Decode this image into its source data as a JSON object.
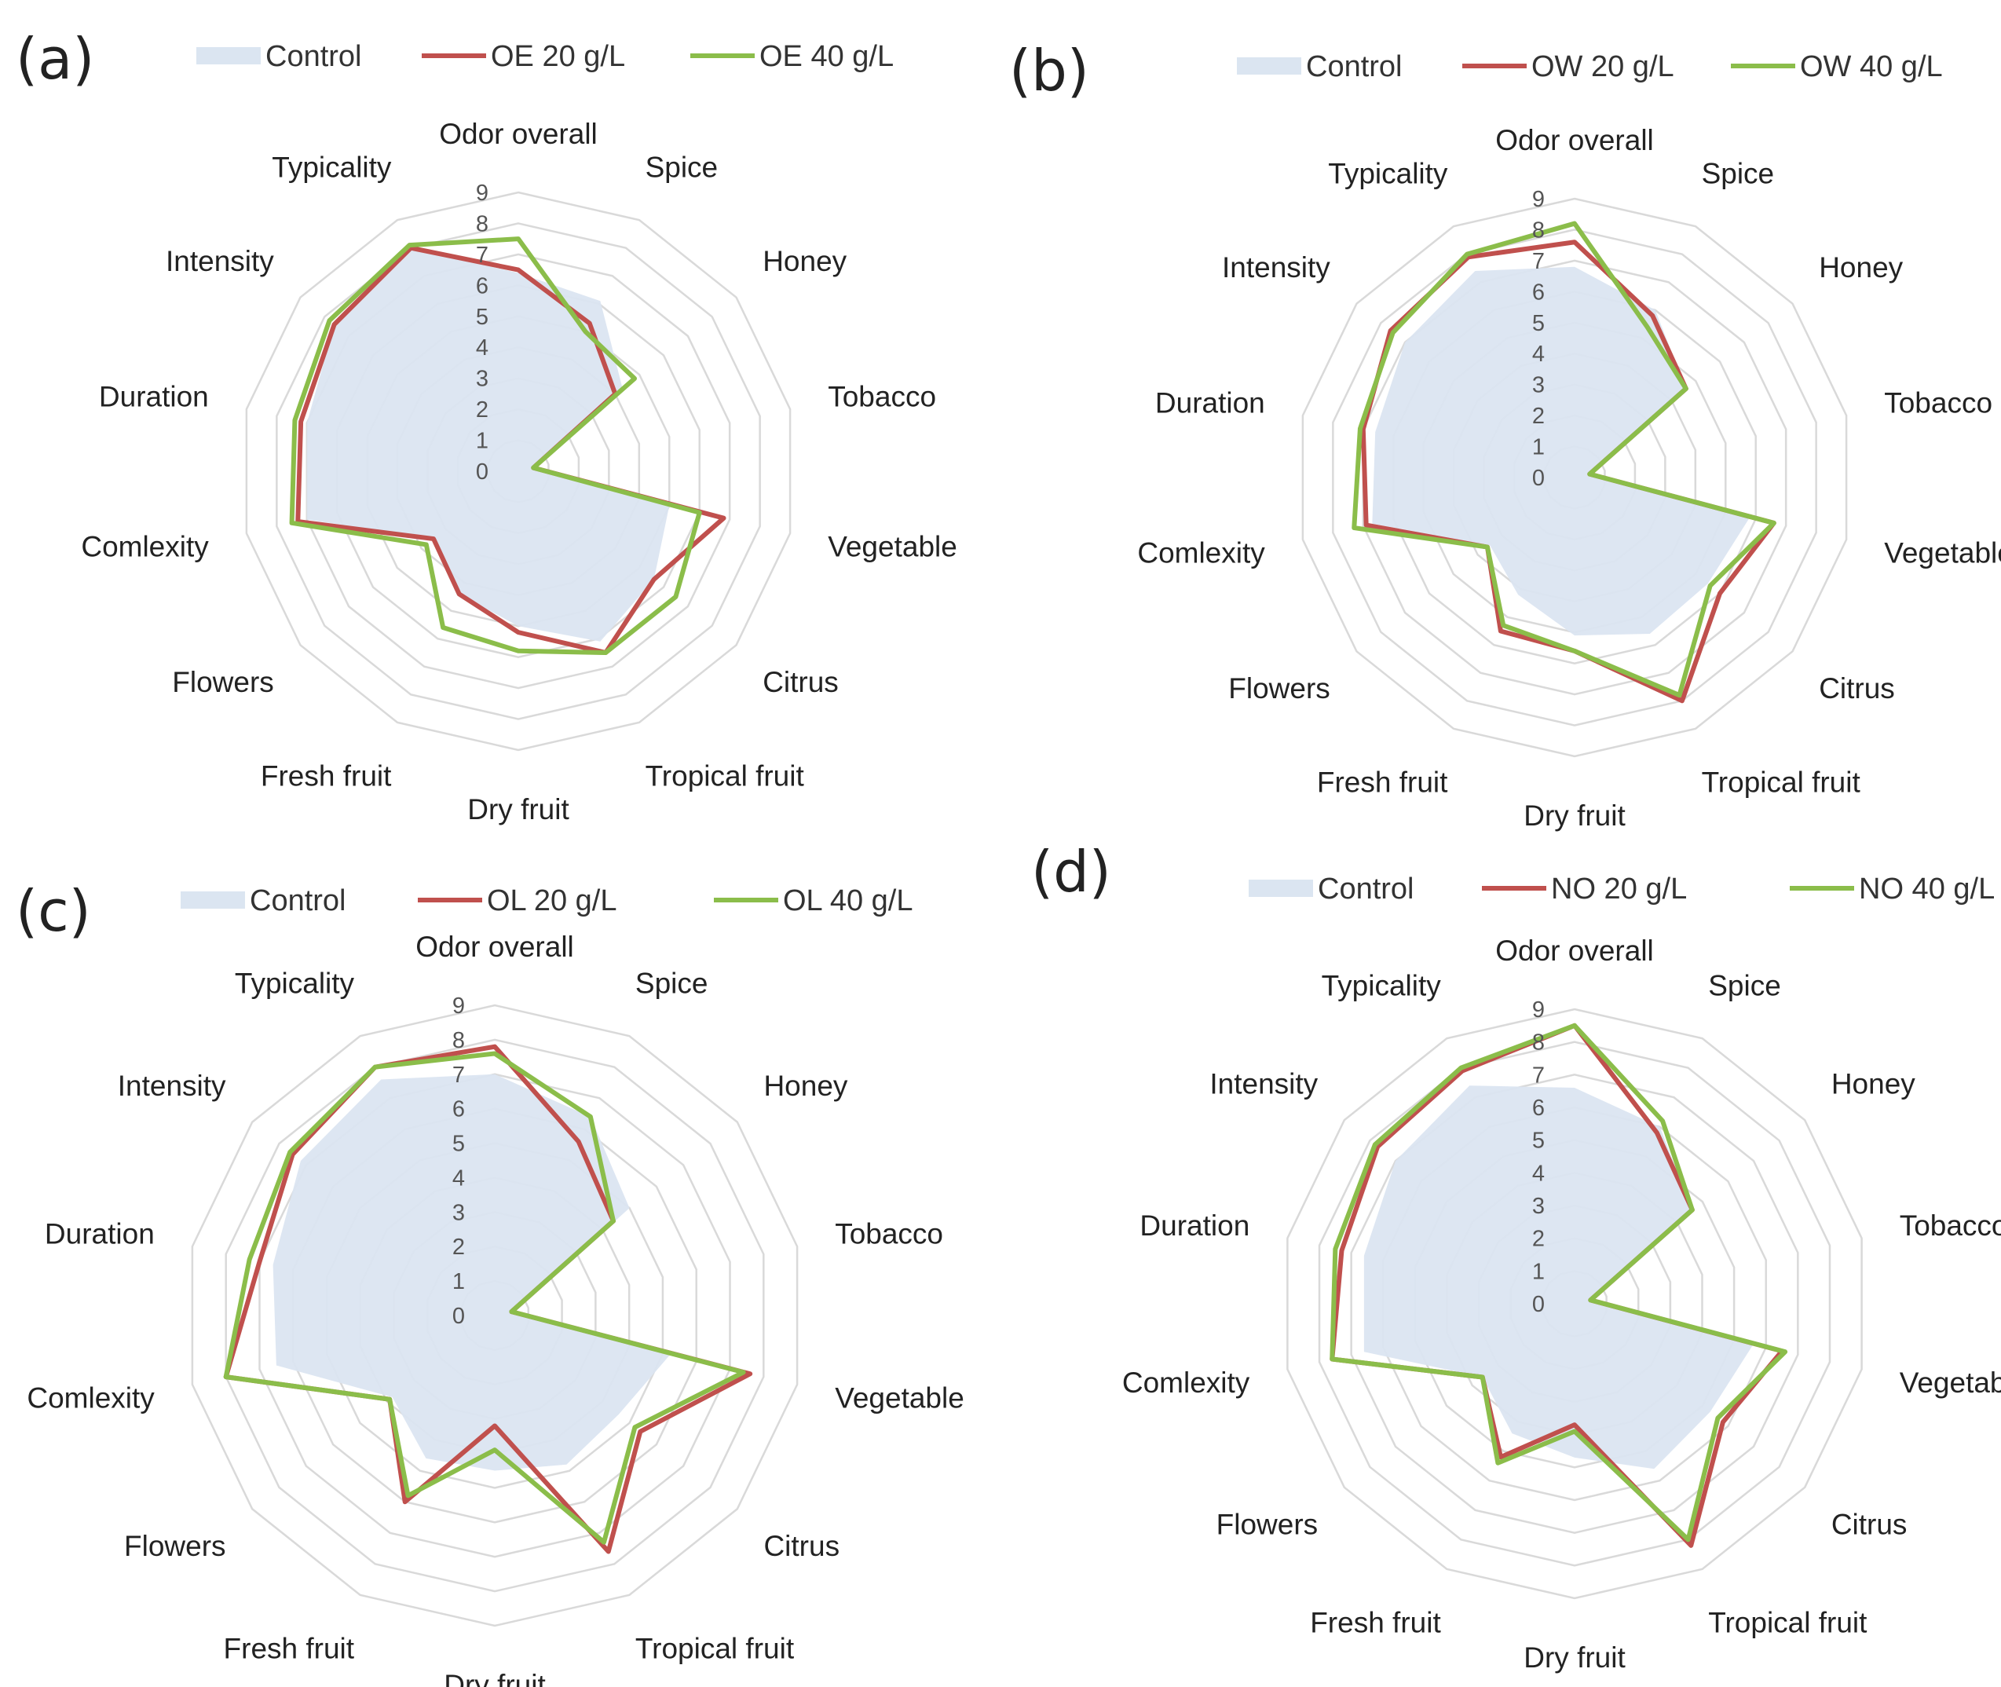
{
  "figure": {
    "colors": {
      "control": "#dbe5f1",
      "red": "#c0504d",
      "green": "#8bbd4a",
      "grid": "#d9d9d9"
    }
  },
  "chart_data": [
    {
      "type": "radar",
      "panel_label": "(a)",
      "categories": [
        "Odor overall",
        "Spice",
        "Honey",
        "Tobacco",
        "Vegetable",
        "Citrus",
        "Tropical fruit",
        "Dry fruit",
        "Fresh fruit",
        "Flowers",
        "Comlexity",
        "Duration",
        "Intensity",
        "Typicality"
      ],
      "ticks": [
        "0",
        "1",
        "2",
        "3",
        "4",
        "5",
        "6",
        "7",
        "8",
        "9"
      ],
      "rmax": 9,
      "series": [
        {
          "name": "Control",
          "style": "area",
          "color": "#dbe5f1",
          "values": [
            6.4,
            6.1,
            4.3,
            0.6,
            5.0,
            5.6,
            6.1,
            5.0,
            4.4,
            3.5,
            7.0,
            7.0,
            7.6,
            8.0
          ]
        },
        {
          "name": "OE 20 g/L",
          "style": "line",
          "color": "#c0504d",
          "values": [
            6.5,
            5.3,
            4.0,
            0.5,
            6.8,
            5.6,
            6.5,
            5.2,
            4.4,
            3.5,
            7.3,
            7.2,
            7.6,
            8.0
          ]
        },
        {
          "name": "OE 40 g/L",
          "style": "line",
          "color": "#8bbd4a",
          "values": [
            7.5,
            5.0,
            4.8,
            0.5,
            6.0,
            6.5,
            6.5,
            5.8,
            5.6,
            3.8,
            7.5,
            7.4,
            7.8,
            8.1
          ]
        }
      ]
    },
    {
      "type": "radar",
      "panel_label": "(b)",
      "categories": [
        "Odor overall",
        "Spice",
        "Honey",
        "Tobacco",
        "Vegetable",
        "Citrus",
        "Tropical fruit",
        "Dry fruit",
        "Fresh fruit",
        "Flowers",
        "Comlexity",
        "Duration",
        "Intensity",
        "Typicality"
      ],
      "ticks": [
        "0",
        "1",
        "2",
        "3",
        "4",
        "5",
        "6",
        "7",
        "8",
        "9"
      ],
      "rmax": 9,
      "series": [
        {
          "name": "Control",
          "style": "area",
          "color": "#dbe5f1",
          "values": [
            6.8,
            6.0,
            4.6,
            0.6,
            5.8,
            5.5,
            5.6,
            5.1,
            4.2,
            3.5,
            6.7,
            6.6,
            7.0,
            7.4
          ]
        },
        {
          "name": "OW 20 g/L",
          "style": "line",
          "color": "#c0504d",
          "values": [
            7.6,
            5.8,
            4.6,
            0.5,
            6.6,
            6.0,
            8.0,
            5.6,
            5.5,
            3.6,
            6.9,
            7.0,
            7.6,
            7.9
          ]
        },
        {
          "name": "OW 40 g/L",
          "style": "line",
          "color": "#8bbd4a",
          "values": [
            8.2,
            5.4,
            4.6,
            0.5,
            6.6,
            5.6,
            7.8,
            5.6,
            5.3,
            3.6,
            7.3,
            7.1,
            7.5,
            8.0
          ]
        }
      ]
    },
    {
      "type": "radar",
      "panel_label": "(c)",
      "categories": [
        "Odor overall",
        "Spice",
        "Honey",
        "Tobacco",
        "Vegetable",
        "Citrus",
        "Tropical fruit",
        "Dry fruit",
        "Fresh fruit",
        "Flowers",
        "Comlexity",
        "Duration",
        "Intensity",
        "Typicality"
      ],
      "ticks": [
        "0",
        "1",
        "2",
        "3",
        "4",
        "5",
        "6",
        "7",
        "8",
        "9"
      ],
      "rmax": 9,
      "series": [
        {
          "name": "Control",
          "style": "area",
          "color": "#dbe5f1",
          "values": [
            7.0,
            6.4,
            5.0,
            0.6,
            5.2,
            4.6,
            4.8,
            4.5,
            4.6,
            3.8,
            6.5,
            6.6,
            7.2,
            7.6
          ]
        },
        {
          "name": "OL 20 g/L",
          "style": "line",
          "color": "#c0504d",
          "values": [
            7.8,
            5.6,
            4.4,
            0.5,
            7.6,
            5.4,
            7.6,
            3.2,
            6.0,
            3.9,
            8.0,
            7.0,
            7.5,
            8.0
          ]
        },
        {
          "name": "OL 40 g/L",
          "style": "line",
          "color": "#8bbd4a",
          "values": [
            7.6,
            6.4,
            4.4,
            0.5,
            7.4,
            5.2,
            7.3,
            3.9,
            5.8,
            3.9,
            8.0,
            7.3,
            7.6,
            8.0
          ]
        }
      ]
    },
    {
      "type": "radar",
      "panel_label": "(d)",
      "categories": [
        "Odor overall",
        "Spice",
        "Honey",
        "Tobacco",
        "Vegetable",
        "Citrus",
        "Tropical fruit",
        "Dry fruit",
        "Fresh fruit",
        "Flowers",
        "Comlexity",
        "Duration",
        "Intensity",
        "Typicality"
      ],
      "ticks": [
        "0",
        "1",
        "2",
        "3",
        "4",
        "5",
        "6",
        "7",
        "8",
        "9"
      ],
      "rmax": 9,
      "series": [
        {
          "name": "Control",
          "style": "area",
          "color": "#dbe5f1",
          "values": [
            6.6,
            6.0,
            4.6,
            0.6,
            5.6,
            5.3,
            5.6,
            4.7,
            4.4,
            3.6,
            6.6,
            6.6,
            7.0,
            7.4
          ]
        },
        {
          "name": "NO 20 g/L",
          "style": "line",
          "color": "#c0504d",
          "values": [
            8.5,
            5.8,
            4.6,
            0.5,
            6.5,
            5.8,
            8.2,
            3.7,
            5.2,
            3.6,
            7.6,
            7.3,
            7.7,
            7.9
          ]
        },
        {
          "name": "NO 40 g/L",
          "style": "line",
          "color": "#8bbd4a",
          "values": [
            8.5,
            6.2,
            4.6,
            0.5,
            6.6,
            5.6,
            8.0,
            3.9,
            5.4,
            3.6,
            7.6,
            7.5,
            7.8,
            8.0
          ]
        }
      ]
    }
  ]
}
